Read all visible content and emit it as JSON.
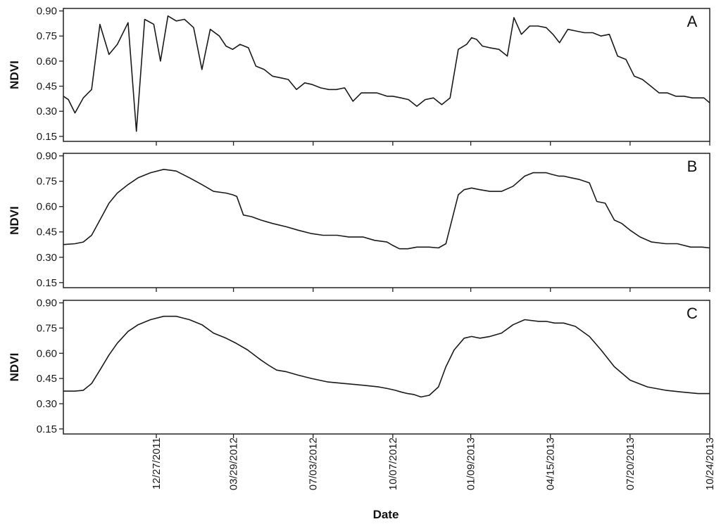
{
  "chart_data": {
    "type": "line",
    "xlabel": "Date",
    "x_tick_labels": [
      "12/27/2011",
      "03/29/2012",
      "07/03/2012",
      "10/07/2012",
      "01/09/2013",
      "04/15/2013",
      "07/20/2013",
      "10/24/2013"
    ],
    "x_ticks": [
      "2011-12-27",
      "2012-03-29",
      "2012-07-03",
      "2012-10-07",
      "2013-01-09",
      "2013-04-15",
      "2013-07-20",
      "2013-10-24"
    ],
    "xlim": [
      "2011-09-06",
      "2013-10-24"
    ],
    "ylim": [
      0.12,
      0.915
    ],
    "yticks": [
      0.15,
      0.3,
      0.45,
      0.6,
      0.75,
      0.9
    ],
    "y_tick_labels": [
      "0.15",
      "0.30",
      "0.45",
      "0.60",
      "0.75",
      "0.90"
    ],
    "grid": false,
    "panels": [
      {
        "label": "A",
        "ylabel": "NDVI",
        "x": [
          "2011-09-06",
          "2011-09-12",
          "2011-09-20",
          "2011-09-30",
          "2011-10-10",
          "2011-10-20",
          "2011-10-31",
          "2011-11-10",
          "2011-11-23",
          "2011-12-03",
          "2011-12-13",
          "2011-12-24",
          "2012-01-01",
          "2012-01-10",
          "2012-01-20",
          "2012-01-30",
          "2012-02-10",
          "2012-02-20",
          "2012-03-01",
          "2012-03-12",
          "2012-03-20",
          "2012-03-28",
          "2012-04-06",
          "2012-04-16",
          "2012-04-25",
          "2012-05-05",
          "2012-05-15",
          "2012-05-25",
          "2012-06-03",
          "2012-06-13",
          "2012-06-23",
          "2012-07-02",
          "2012-07-12",
          "2012-07-22",
          "2012-07-31",
          "2012-08-10",
          "2012-08-20",
          "2012-08-30",
          "2012-09-08",
          "2012-09-18",
          "2012-09-30",
          "2012-10-07",
          "2012-10-17",
          "2012-10-26",
          "2012-11-05",
          "2012-11-15",
          "2012-11-25",
          "2012-12-05",
          "2012-12-15",
          "2012-12-25",
          "2013-01-04",
          "2013-01-10",
          "2013-01-16",
          "2013-01-23",
          "2013-02-01",
          "2013-02-12",
          "2013-02-22",
          "2013-03-02",
          "2013-03-11",
          "2013-03-21",
          "2013-03-31",
          "2013-04-10",
          "2013-04-18",
          "2013-04-26",
          "2013-05-06",
          "2013-05-16",
          "2013-05-26",
          "2013-06-05",
          "2013-06-15",
          "2013-06-25",
          "2013-07-05",
          "2013-07-15",
          "2013-07-25",
          "2013-08-04",
          "2013-08-14",
          "2013-08-24",
          "2013-09-03",
          "2013-09-13",
          "2013-09-23",
          "2013-10-03",
          "2013-10-10",
          "2013-10-17",
          "2013-10-24"
        ],
        "y": [
          0.39,
          0.37,
          0.29,
          0.38,
          0.43,
          0.82,
          0.64,
          0.7,
          0.83,
          0.18,
          0.85,
          0.82,
          0.6,
          0.87,
          0.84,
          0.85,
          0.8,
          0.55,
          0.79,
          0.75,
          0.69,
          0.67,
          0.7,
          0.68,
          0.57,
          0.55,
          0.51,
          0.5,
          0.49,
          0.43,
          0.47,
          0.46,
          0.44,
          0.43,
          0.43,
          0.44,
          0.36,
          0.41,
          0.41,
          0.41,
          0.39,
          0.39,
          0.38,
          0.37,
          0.33,
          0.37,
          0.38,
          0.34,
          0.38,
          0.67,
          0.7,
          0.74,
          0.73,
          0.69,
          0.68,
          0.67,
          0.63,
          0.86,
          0.76,
          0.81,
          0.81,
          0.8,
          0.76,
          0.71,
          0.79,
          0.78,
          0.77,
          0.77,
          0.75,
          0.76,
          0.63,
          0.61,
          0.51,
          0.49,
          0.45,
          0.41,
          0.41,
          0.39,
          0.39,
          0.38,
          0.38,
          0.38,
          0.35
        ]
      },
      {
        "label": "B",
        "ylabel": "NDVI",
        "x": [
          "2011-09-06",
          "2011-09-20",
          "2011-09-30",
          "2011-10-10",
          "2011-10-20",
          "2011-10-31",
          "2011-11-10",
          "2011-11-23",
          "2011-12-05",
          "2011-12-20",
          "2012-01-05",
          "2012-01-20",
          "2012-02-05",
          "2012-02-20",
          "2012-03-05",
          "2012-03-20",
          "2012-03-28",
          "2012-04-02",
          "2012-04-10",
          "2012-04-20",
          "2012-05-01",
          "2012-05-15",
          "2012-06-01",
          "2012-06-15",
          "2012-07-01",
          "2012-07-15",
          "2012-08-01",
          "2012-08-15",
          "2012-09-01",
          "2012-09-15",
          "2012-09-30",
          "2012-10-07",
          "2012-10-15",
          "2012-10-25",
          "2012-11-05",
          "2012-11-15",
          "2012-11-20",
          "2012-12-01",
          "2012-12-10",
          "2012-12-25",
          "2013-01-01",
          "2013-01-10",
          "2013-01-20",
          "2013-02-01",
          "2013-02-15",
          "2013-03-01",
          "2013-03-15",
          "2013-03-25",
          "2013-04-01",
          "2013-04-10",
          "2013-04-17",
          "2013-04-25",
          "2013-05-01",
          "2013-05-10",
          "2013-05-20",
          "2013-06-01",
          "2013-06-10",
          "2013-06-20",
          "2013-07-01",
          "2013-07-10",
          "2013-07-20",
          "2013-08-01",
          "2013-08-15",
          "2013-09-01",
          "2013-09-15",
          "2013-10-01",
          "2013-10-15",
          "2013-10-24"
        ],
        "y": [
          0.375,
          0.38,
          0.39,
          0.43,
          0.52,
          0.62,
          0.68,
          0.73,
          0.77,
          0.8,
          0.82,
          0.81,
          0.77,
          0.73,
          0.69,
          0.68,
          0.67,
          0.66,
          0.55,
          0.54,
          0.52,
          0.5,
          0.48,
          0.46,
          0.44,
          0.43,
          0.43,
          0.42,
          0.42,
          0.4,
          0.39,
          0.37,
          0.35,
          0.35,
          0.36,
          0.36,
          0.36,
          0.355,
          0.38,
          0.67,
          0.7,
          0.71,
          0.7,
          0.69,
          0.69,
          0.72,
          0.78,
          0.8,
          0.8,
          0.8,
          0.79,
          0.78,
          0.78,
          0.77,
          0.76,
          0.74,
          0.63,
          0.62,
          0.52,
          0.5,
          0.46,
          0.42,
          0.39,
          0.38,
          0.38,
          0.36,
          0.36,
          0.355
        ]
      },
      {
        "label": "C",
        "ylabel": "NDVI",
        "x": [
          "2011-09-06",
          "2011-09-20",
          "2011-09-30",
          "2011-10-10",
          "2011-10-20",
          "2011-10-31",
          "2011-11-10",
          "2011-11-23",
          "2011-12-05",
          "2011-12-20",
          "2012-01-05",
          "2012-01-20",
          "2012-02-05",
          "2012-02-20",
          "2012-03-05",
          "2012-03-20",
          "2012-04-01",
          "2012-04-15",
          "2012-05-01",
          "2012-05-10",
          "2012-05-20",
          "2012-06-01",
          "2012-06-15",
          "2012-07-01",
          "2012-07-20",
          "2012-08-10",
          "2012-09-01",
          "2012-09-20",
          "2012-10-01",
          "2012-10-10",
          "2012-10-17",
          "2012-10-25",
          "2012-11-01",
          "2012-11-10",
          "2012-11-20",
          "2012-12-01",
          "2012-12-10",
          "2012-12-20",
          "2013-01-01",
          "2013-01-10",
          "2013-01-20",
          "2013-02-01",
          "2013-02-15",
          "2013-03-01",
          "2013-03-15",
          "2013-04-01",
          "2013-04-10",
          "2013-04-20",
          "2013-05-01",
          "2013-05-15",
          "2013-06-01",
          "2013-06-15",
          "2013-07-01",
          "2013-07-20",
          "2013-08-10",
          "2013-09-01",
          "2013-09-20",
          "2013-10-10",
          "2013-10-24"
        ],
        "y": [
          0.375,
          0.375,
          0.38,
          0.42,
          0.5,
          0.59,
          0.66,
          0.73,
          0.77,
          0.8,
          0.82,
          0.82,
          0.8,
          0.77,
          0.72,
          0.69,
          0.66,
          0.62,
          0.56,
          0.53,
          0.5,
          0.49,
          0.47,
          0.45,
          0.43,
          0.42,
          0.41,
          0.4,
          0.39,
          0.38,
          0.37,
          0.36,
          0.355,
          0.34,
          0.35,
          0.4,
          0.52,
          0.62,
          0.69,
          0.7,
          0.69,
          0.7,
          0.72,
          0.77,
          0.8,
          0.79,
          0.79,
          0.78,
          0.78,
          0.76,
          0.7,
          0.62,
          0.52,
          0.44,
          0.4,
          0.38,
          0.37,
          0.36,
          0.36
        ]
      }
    ]
  }
}
